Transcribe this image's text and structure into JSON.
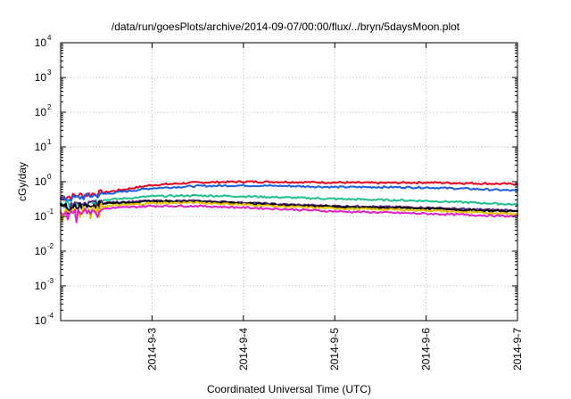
{
  "chart_data": {
    "type": "line",
    "title": "/data/run/goesPlots/archive/2014-09-07/00:00/flux/../bryn/5daysMoon.plot",
    "xlabel": "Coordinated Universal Time (UTC)",
    "ylabel": "cGy/day",
    "y_scale": "log",
    "ylim": [
      0.0001,
      10000
    ],
    "xlim": [
      "2014-09-02 00:00",
      "2014-09-07 00:00"
    ],
    "grid": true,
    "legend": "none",
    "y_ticks": [
      {
        "base": "10",
        "exp": "-4",
        "value": 0.0001
      },
      {
        "base": "10",
        "exp": "-3",
        "value": 0.001
      },
      {
        "base": "10",
        "exp": "-2",
        "value": 0.01
      },
      {
        "base": "10",
        "exp": "-1",
        "value": 0.1
      },
      {
        "base": "10",
        "exp": "0",
        "value": 1
      },
      {
        "base": "10",
        "exp": "1",
        "value": 10
      },
      {
        "base": "10",
        "exp": "2",
        "value": 100
      },
      {
        "base": "10",
        "exp": "3",
        "value": 1000
      },
      {
        "base": "10",
        "exp": "4",
        "value": 10000
      }
    ],
    "x_ticks": [
      {
        "label": "2014-9-3",
        "value": "2014-09-03 00:00"
      },
      {
        "label": "2014-9-4",
        "value": "2014-09-04 00:00"
      },
      {
        "label": "2014-9-5",
        "value": "2014-09-05 00:00"
      },
      {
        "label": "2014-9-6",
        "value": "2014-09-06 00:00"
      },
      {
        "label": "2014-9-7",
        "value": "2014-09-07 00:00"
      }
    ],
    "x": [
      "2014-09-02 00:00",
      "2014-09-02 12:00",
      "2014-09-03 00:00",
      "2014-09-03 12:00",
      "2014-09-04 00:00",
      "2014-09-04 12:00",
      "2014-09-05 00:00",
      "2014-09-05 12:00",
      "2014-09-06 00:00",
      "2014-09-06 12:00",
      "2014-09-07 00:00"
    ],
    "series": [
      {
        "color": "#e8001c",
        "values": [
          0.35,
          0.5,
          0.8,
          0.95,
          1.0,
          0.98,
          0.95,
          0.92,
          0.95,
          0.9,
          0.85
        ]
      },
      {
        "color": "#1a5fe0",
        "values": [
          0.3,
          0.45,
          0.65,
          0.75,
          0.78,
          0.75,
          0.7,
          0.7,
          0.68,
          0.62,
          0.55
        ]
      },
      {
        "color": "#1fbf8f",
        "values": [
          0.22,
          0.3,
          0.38,
          0.4,
          0.38,
          0.35,
          0.32,
          0.3,
          0.28,
          0.25,
          0.22
        ]
      },
      {
        "color": "#5a2a8a",
        "values": [
          0.2,
          0.25,
          0.28,
          0.28,
          0.25,
          0.22,
          0.2,
          0.19,
          0.18,
          0.16,
          0.15
        ]
      },
      {
        "color": "#000000",
        "values": [
          0.19,
          0.24,
          0.27,
          0.27,
          0.24,
          0.21,
          0.19,
          0.18,
          0.17,
          0.15,
          0.14
        ]
      },
      {
        "color": "#e6c200",
        "values": [
          0.15,
          0.2,
          0.24,
          0.25,
          0.22,
          0.19,
          0.17,
          0.16,
          0.15,
          0.13,
          0.12
        ]
      },
      {
        "color": "#e020c8",
        "values": [
          0.12,
          0.17,
          0.2,
          0.2,
          0.18,
          0.16,
          0.14,
          0.13,
          0.12,
          0.11,
          0.1
        ]
      }
    ]
  }
}
